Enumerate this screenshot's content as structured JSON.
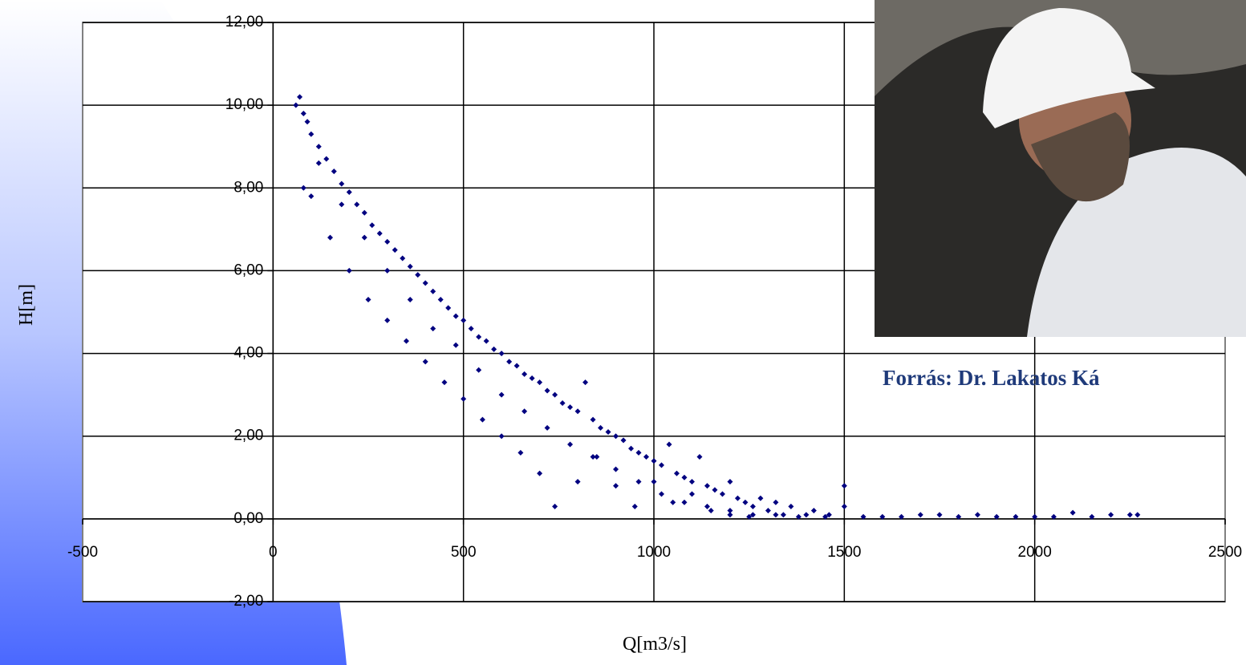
{
  "chart_data": {
    "type": "scatter",
    "xlabel": "Q[m3/s]",
    "ylabel": "H[m]",
    "annotation": "Forrás: Dr. Lakatos Ká",
    "color": "#000080",
    "grid": true,
    "xlim": [
      -500,
      2500
    ],
    "xticks": [
      -500,
      0,
      500,
      1000,
      1500,
      2000,
      2500
    ],
    "ylim": [
      -2,
      12
    ],
    "yticks": [
      {
        "value": -2,
        "label": "-2,00"
      },
      {
        "value": 0,
        "label": "0,00"
      },
      {
        "value": 2,
        "label": "2,00"
      },
      {
        "value": 4,
        "label": "4,00"
      },
      {
        "value": 6,
        "label": "6,00"
      },
      {
        "value": 8,
        "label": "8,00"
      },
      {
        "value": 10,
        "label": "10,00"
      },
      {
        "value": 12,
        "label": "12,00"
      }
    ],
    "x": [
      60,
      70,
      80,
      90,
      100,
      120,
      140,
      160,
      180,
      200,
      220,
      240,
      260,
      280,
      300,
      320,
      340,
      360,
      380,
      400,
      420,
      440,
      460,
      480,
      500,
      520,
      540,
      560,
      580,
      600,
      620,
      640,
      660,
      680,
      700,
      720,
      740,
      760,
      780,
      800,
      820,
      840,
      860,
      880,
      900,
      920,
      940,
      960,
      980,
      1000,
      1020,
      1040,
      1060,
      1080,
      1100,
      1120,
      1140,
      1160,
      1180,
      1200,
      1220,
      1240,
      1260,
      1280,
      1300,
      1320,
      1340,
      1360,
      1400,
      1450,
      1500,
      1500,
      1550,
      1600,
      1650,
      1700,
      1750,
      1800,
      1850,
      1900,
      1950,
      2000,
      2050,
      2100,
      2150,
      2200,
      2250,
      2270,
      80,
      100,
      150,
      200,
      250,
      300,
      350,
      400,
      450,
      500,
      550,
      600,
      650,
      700,
      740,
      800,
      850,
      900,
      950,
      1000,
      1050,
      1100,
      1150,
      1200,
      1250,
      120,
      180,
      240,
      300,
      360,
      420,
      480,
      540,
      600,
      660,
      720,
      780,
      840,
      900,
      960,
      1020,
      1080,
      1140,
      1200,
      1260,
      1320,
      1380,
      1420,
      1460
    ],
    "values": [
      10.0,
      10.2,
      9.8,
      9.6,
      9.3,
      9.0,
      8.7,
      8.4,
      8.1,
      7.9,
      7.6,
      7.4,
      7.1,
      6.9,
      6.7,
      6.5,
      6.3,
      6.1,
      5.9,
      5.7,
      5.5,
      5.3,
      5.1,
      4.9,
      4.8,
      4.6,
      4.4,
      4.3,
      4.1,
      4.0,
      3.8,
      3.7,
      3.5,
      3.4,
      3.3,
      3.1,
      3.0,
      2.8,
      2.7,
      2.6,
      3.3,
      2.4,
      2.2,
      2.1,
      2.0,
      1.9,
      1.7,
      1.6,
      1.5,
      1.4,
      1.3,
      1.8,
      1.1,
      1.0,
      0.9,
      1.5,
      0.8,
      0.7,
      0.6,
      0.9,
      0.5,
      0.4,
      0.3,
      0.5,
      0.2,
      0.4,
      0.1,
      0.3,
      0.1,
      0.05,
      0.8,
      0.3,
      0.05,
      0.05,
      0.05,
      0.1,
      0.1,
      0.05,
      0.1,
      0.05,
      0.05,
      0.05,
      0.05,
      0.15,
      0.05,
      0.1,
      0.1,
      0.1,
      8.0,
      7.8,
      6.8,
      6.0,
      5.3,
      4.8,
      4.3,
      3.8,
      3.3,
      2.9,
      2.4,
      2.0,
      1.6,
      1.1,
      0.3,
      0.9,
      1.5,
      0.8,
      0.3,
      0.9,
      0.4,
      0.6,
      0.2,
      0.1,
      0.05,
      8.6,
      7.6,
      6.8,
      6.0,
      5.3,
      4.6,
      4.2,
      3.6,
      3.0,
      2.6,
      2.2,
      1.8,
      1.5,
      1.2,
      0.9,
      0.6,
      0.4,
      0.3,
      0.2,
      0.1,
      0.1,
      0.05,
      0.2,
      0.1
    ]
  }
}
